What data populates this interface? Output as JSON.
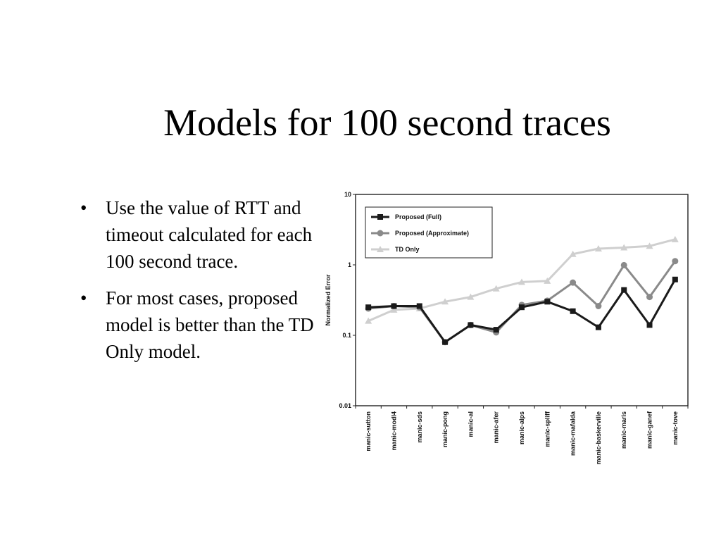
{
  "slide": {
    "title": "Models for 100 second traces",
    "bullets": [
      {
        "marker": "•",
        "text": "Use the value of RTT and timeout calculated for each 100 second trace."
      },
      {
        "marker": "•",
        "text": "For most cases, proposed model is better than the TD Only model."
      }
    ]
  },
  "chart_data": {
    "type": "line",
    "ylabel": "Normalized Error",
    "xlabel": "",
    "yscale": "log",
    "ylim": [
      0.01,
      10
    ],
    "yticks": [
      {
        "value": 10,
        "label": "10"
      },
      {
        "value": 1,
        "label": "1"
      },
      {
        "value": 0.1,
        "label": "0.1"
      },
      {
        "value": 0.01,
        "label": "0.01"
      }
    ],
    "legend_position": "top-left",
    "grid": false,
    "categories": [
      "manic-sutton",
      "manic-modl4",
      "manic-sds",
      "manic-pong",
      "manic-al",
      "manic-afer",
      "manic-alps",
      "manic-spliff",
      "manic-mafalda",
      "manic-baskerville",
      "manic-maris",
      "manic-ganef",
      "manic-tove"
    ],
    "series": [
      {
        "name": "Proposed (Full)",
        "color": "#1a1a1a",
        "marker": "square",
        "values": [
          0.25,
          0.26,
          0.26,
          0.08,
          0.14,
          0.12,
          0.25,
          0.3,
          0.22,
          0.13,
          0.44,
          0.14,
          0.62
        ]
      },
      {
        "name": "Proposed (Approximate)",
        "color": "#8a8a8a",
        "marker": "circle",
        "values": [
          0.24,
          0.26,
          0.25,
          0.08,
          0.14,
          0.11,
          0.27,
          0.31,
          0.56,
          0.26,
          0.99,
          0.35,
          1.13
        ]
      },
      {
        "name": "TD Only",
        "color": "#cfcfcf",
        "marker": "triangle",
        "values": [
          0.16,
          0.23,
          0.24,
          0.3,
          0.35,
          0.46,
          0.57,
          0.59,
          1.42,
          1.7,
          1.76,
          1.85,
          2.3
        ]
      }
    ]
  }
}
